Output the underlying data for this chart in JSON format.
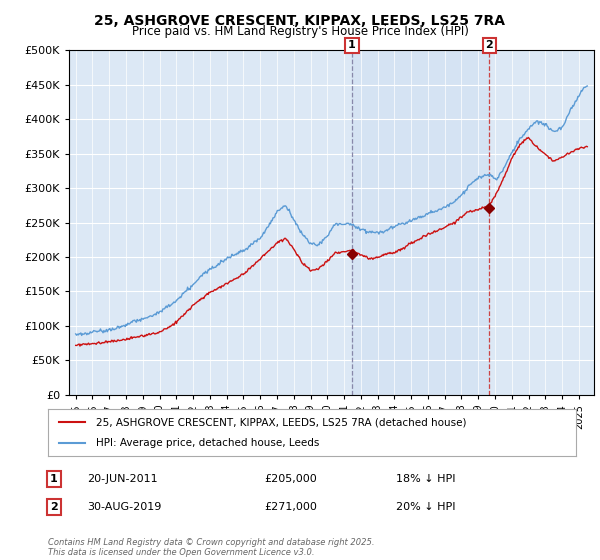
{
  "title_line1": "25, ASHGROVE CRESCENT, KIPPAX, LEEDS, LS25 7RA",
  "title_line2": "Price paid vs. HM Land Registry's House Price Index (HPI)",
  "background_color": "#ffffff",
  "plot_bg_color": "#dce8f5",
  "red_label": "25, ASHGROVE CRESCENT, KIPPAX, LEEDS, LS25 7RA (detached house)",
  "blue_label": "HPI: Average price, detached house, Leeds",
  "annotation1_date": "20-JUN-2011",
  "annotation1_price": "£205,000",
  "annotation1_note": "18% ↓ HPI",
  "annotation2_date": "30-AUG-2019",
  "annotation2_price": "£271,000",
  "annotation2_note": "20% ↓ HPI",
  "footer": "Contains HM Land Registry data © Crown copyright and database right 2025.\nThis data is licensed under the Open Government Licence v3.0.",
  "ylim": [
    0,
    500000
  ],
  "yticks": [
    0,
    50000,
    100000,
    150000,
    200000,
    250000,
    300000,
    350000,
    400000,
    450000,
    500000
  ],
  "sale1_x": 2011.47,
  "sale1_y": 205000,
  "sale2_x": 2019.66,
  "sale2_y": 271000,
  "xlim_left": 1994.6,
  "xlim_right": 2025.9
}
